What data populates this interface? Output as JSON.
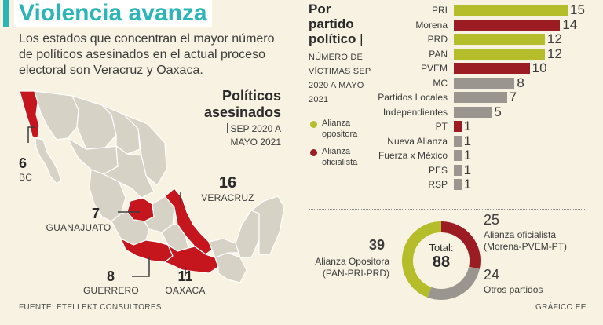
{
  "header": {
    "title": "Violencia avanza",
    "subtitle": "Los estados que concentran el mayor número de políticos asesinados en el actual proceso electoral son Veracruz y Oaxaca."
  },
  "map": {
    "title_line1": "Políticos",
    "title_line2": "asesinados",
    "period_line1": "SEP 2020 A",
    "period_line2": "MAYO 2021",
    "states": [
      {
        "count": "6",
        "name": "BC"
      },
      {
        "count": "7",
        "name": "GUANAJUATO"
      },
      {
        "count": "16",
        "name": "VERACRUZ"
      },
      {
        "count": "8",
        "name": "GUERRERO"
      },
      {
        "count": "11",
        "name": "OAXACA"
      }
    ],
    "colors": {
      "highlight": "#c4161c",
      "land": "#d7d2c6",
      "border": "#ffffff"
    }
  },
  "party": {
    "title_line1": "Por",
    "title_line2": "partido",
    "title_line3": "político",
    "sub_lines": [
      "NÚMERO DE",
      "VÍCTIMAS SEP",
      "2020 A MAYO",
      "2021"
    ],
    "legend": [
      {
        "line1": "Alianza",
        "line2": "opositora",
        "color": "#b5bd2a"
      },
      {
        "line1": "Alianza",
        "line2": "oficialista",
        "color": "#9c1c24"
      }
    ]
  },
  "chart_data": [
    {
      "type": "bar",
      "orientation": "horizontal",
      "title": "Por partido político",
      "subtitle": "NÚMERO DE VÍCTIMAS SEP 2020 A MAYO 2021",
      "categories": [
        "PRI",
        "Morena",
        "PRD",
        "PAN",
        "PVEM",
        "MC",
        "Partidos Locales",
        "Independientes",
        "PT",
        "Nueva Alianza",
        "Fuerza x México",
        "PES",
        "RSP"
      ],
      "values": [
        15,
        14,
        12,
        12,
        10,
        8,
        7,
        5,
        1,
        1,
        1,
        1,
        1
      ],
      "groups": [
        "opositora",
        "oficialista",
        "opositora",
        "opositora",
        "oficialista",
        "otros",
        "otros",
        "otros",
        "oficialista",
        "otros",
        "otros",
        "otros",
        "otros"
      ],
      "xlim": [
        0,
        15
      ],
      "colors": {
        "opositora": "#b5bd2a",
        "oficialista": "#9c1c24",
        "otros": "#9b9590"
      }
    },
    {
      "type": "pie",
      "title": "Total:",
      "total": 88,
      "slices": [
        {
          "label_line1": "Alianza oficialista",
          "label_line2": "(Morena-PVEM-PT)",
          "value": 25,
          "color": "#9c1c24"
        },
        {
          "label_line1": "Otros partidos",
          "label_line2": "",
          "value": 24,
          "color": "#9b9590"
        },
        {
          "label_line1": "Alianza Opositora",
          "label_line2": "(PAN-PRI-PRD)",
          "value": 39,
          "color": "#b5bd2a"
        }
      ]
    }
  ],
  "footer": {
    "source": "FUENTE: ETELLEKT CONSULTORES",
    "credit": "GRÁFICO EE"
  }
}
